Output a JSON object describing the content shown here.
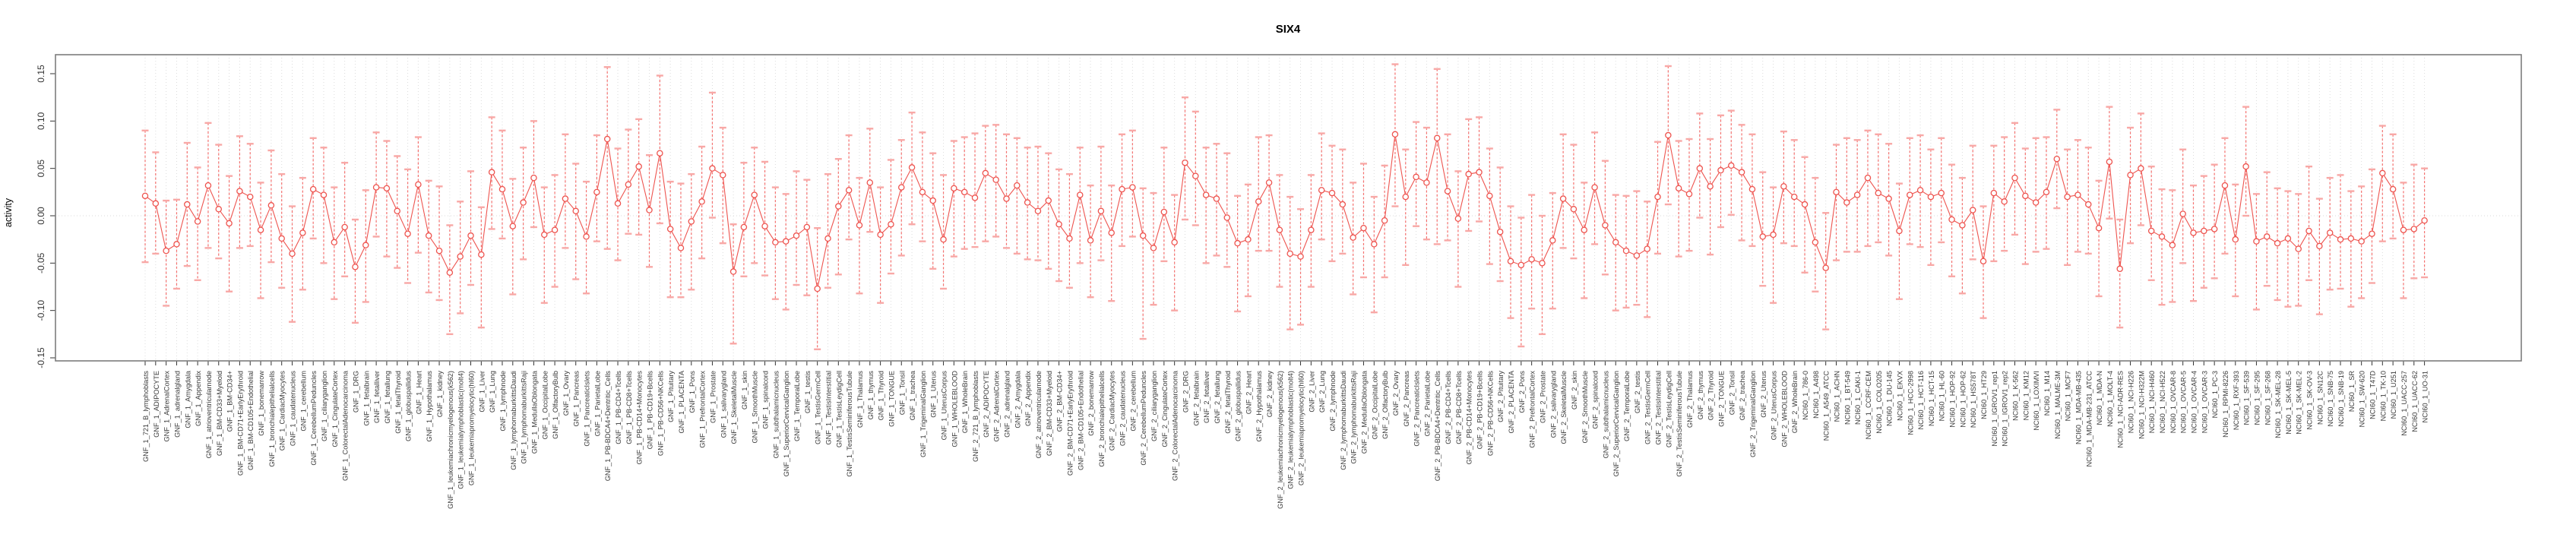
{
  "title": "SIX4",
  "chart_data": {
    "type": "scatter",
    "title": "SIX4",
    "xlabel": "",
    "ylabel": "activity",
    "ylim": [
      -0.153,
      0.171
    ],
    "grid": "vertical dotted gridline at every category; horizontal dotted line at 0",
    "legend_position": "none",
    "marker": "open-circle with dashed error bars (capped) connected by line",
    "n_points": 218,
    "yticks": [
      {
        "label": "0.15",
        "value": 0.15
      },
      {
        "label": "0.10",
        "value": 0.1
      },
      {
        "label": "0.05",
        "value": 0.05
      },
      {
        "label": "0.00",
        "value": 0.0
      },
      {
        "label": "-0.05",
        "value": -0.05
      },
      {
        "label": "-0.10",
        "value": -0.1
      },
      {
        "label": "-0.15",
        "value": -0.15
      }
    ],
    "colors": {
      "series": "#ee544f",
      "error_bar": "#f4716f",
      "error_cap": "#f8a8a6",
      "grid": "#dcdcdc",
      "zero_line": "#d8d8d8",
      "box": "#7d7d7d",
      "tick_text": "#3a3a3a",
      "title_text": "#000000",
      "background": "#ffffff"
    },
    "category_groups": [
      {
        "prefix": "GNF_1_",
        "items": [
          "721_B_lymphoblasts",
          "ADIPOCYTE",
          "AdrenalCortex",
          "adrenalgland",
          "Amygdala",
          "Appendix",
          "atrioventricularnode",
          "BM-CD33+Myeloid",
          "BM-CD34+",
          "BM-CD71+EarlyErythroid",
          "BM-CD105+Endothelial",
          "bonemarrow",
          "bronchialepithelialcells",
          "CardiacMyocytes",
          "caudatenucleus",
          "cerebellum",
          "CerebellumPeduncles",
          "ciliaryganglion",
          "CingulateCortex",
          "ColorectalAdenocarcinoma",
          "DRG",
          "fetalbrain",
          "fetalliver",
          "fetallung",
          "fetalThyroid",
          "globuspallidus",
          "Heart",
          "Hypothalamus",
          "kidney",
          "leukemiachronicmyelogenous(k562)",
          "leukemialymphoblastic(molt4)",
          "leukemiapromyelocytic(hl60)",
          "Liver",
          "Lung",
          "lymphnode",
          "lymphomaburkittsDaudi",
          "lymphomaburkittsRaji",
          "MedullaOblongata",
          "OccipitalLobe",
          "OlfactoryBulb",
          "Ovary",
          "Pancreas",
          "PancreaticIslets",
          "ParietalLobe",
          "PB-BDCA4+Dentritic_Cells",
          "PB-CD4+Tcells",
          "PB-CD8+Tcells",
          "PB-CD14+Monocytes",
          "PB-CD19+Bcells",
          "PB-CD56+NKCells",
          "Pituitary",
          "PLACENTA",
          "Pons",
          "PrefrontalCortex",
          "Prostate",
          "salivarygland",
          "SkeletalMuscle",
          "skin",
          "SmoothMuscle",
          "spinalcord",
          "subthalamicnucleus",
          "SuperiorCervicalGanglion",
          "TemporalLobe",
          "testis",
          "TestisGermCell",
          "TestisInterstitial",
          "TestisLeydigCell",
          "TestisSeminiferousTubule",
          "Thalamus",
          "thymus",
          "Thyroid",
          "TONGUE",
          "Tonsil",
          "trachea",
          "TrigeminalGanglion",
          "Uterus",
          "UterusCorpus",
          "WHOLEBLOOD",
          "WholeBrain"
        ]
      },
      {
        "prefix": "GNF_2_",
        "items": [
          "721_B_lymphoblasts",
          "ADIPOCYTE",
          "AdrenalCortex",
          "adrenalgland",
          "Amygdala",
          "Appendix",
          "atrioventricularnode",
          "BM-CD33+Myeloid",
          "BM-CD34+",
          "BM-CD71+EarlyErythroid",
          "BM-CD105+Endothelial",
          "bonemarrow",
          "bronchialepithelialcells",
          "CardiacMyocytes",
          "caudatenucleus",
          "cerebellum",
          "CerebellumPeduncles",
          "ciliaryganglion",
          "CingulateCortex",
          "ColorectalAdenocarcinoma",
          "DRG",
          "fetalbrain",
          "fetalliver",
          "fetallung",
          "fetalThyroid",
          "globuspallidus",
          "Heart",
          "Hypothalamus",
          "kidney",
          "leukemiachronicmyelogenous(k562)",
          "leukemialymphoblastic(molt4)",
          "leukemiapromyelocytic(hl60)",
          "Liver",
          "Lung",
          "lymphnode",
          "lymphomaburkittsDaudi",
          "lymphomaburkittsRaji",
          "MedullaOblongata",
          "OccipitalLobe",
          "OlfactoryBulb",
          "Ovary",
          "Pancreas",
          "PancreaticIslets",
          "ParietalLobe",
          "PB-BDCA4+Dentritic_Cells",
          "PB-CD4+Tcells",
          "PB-CD8+Tcells",
          "PB-CD14+Monocytes",
          "PB-CD19+Bcells",
          "PB-CD56+NKCells",
          "Pituitary",
          "PLACENTA",
          "Pons",
          "PrefrontalCortex",
          "Prostate",
          "salivarygland",
          "SkeletalMuscle",
          "skin",
          "SmoothMuscle",
          "spinalcord",
          "subthalamicnucleus",
          "SuperiorCervicalGanglion",
          "TemporalLobe",
          "testis",
          "TestisGermCell",
          "TestisInterstitial",
          "TestisLeydigCell",
          "TestisSeminiferousTubule",
          "Thalamus",
          "thymus",
          "Thyroid",
          "TONGUE",
          "Tonsil",
          "trachea",
          "TrigeminalGanglion",
          "Uterus",
          "UterusCorpus",
          "WHOLEBLOOD",
          "WholeBrain"
        ]
      },
      {
        "prefix": "NCI60_1_",
        "items": [
          "786-0",
          "A498",
          "A549_ATCC",
          "ACHN",
          "BT-549",
          "CAKI-1",
          "CCRF-CEM",
          "COLO205",
          "DU-145",
          "EKVX",
          "HCC-2998",
          "HCT-116",
          "HCT-15",
          "HL-60",
          "HOP-92",
          "HOP-62",
          "HS578T",
          "HT29",
          "IGROV1_rep1",
          "IGROV1_rep2",
          "K-562",
          "KM12",
          "LOXIMVI",
          "M14",
          "MALME-3M",
          "MCF7",
          "MDA-MB-435",
          "MDA-MB-231_ATCC",
          "MDA-N",
          "MOLT-4",
          "NCI-ADR-RES",
          "NCI-H226",
          "NCI-H322M",
          "NCI-H460",
          "NCI-H522",
          "OVCAR-8",
          "OVCAR-5",
          "OVCAR-4",
          "OVCAR-3",
          "PC-3",
          "RPMI-8226",
          "RXF-393",
          "SF-539",
          "SF-295",
          "SF-268",
          "SK-MEL-28",
          "SK-MEL-5",
          "SK-MEL-2",
          "SK-OV-3",
          "SN12C",
          "SNB-75",
          "SNB-19",
          "SR",
          "SW-620",
          "T47D",
          "TK-10",
          "U251",
          "UACC-257",
          "UACC-62",
          "UO-31"
        ]
      }
    ],
    "values": [
      0.021,
      0.013,
      -0.037,
      -0.03,
      0.012,
      -0.006,
      0.032,
      0.007,
      -0.008,
      0.026,
      0.02,
      -0.015,
      0.011,
      -0.024,
      -0.04,
      -0.018,
      0.028,
      0.022,
      -0.028,
      -0.012,
      -0.054,
      -0.031,
      0.03,
      0.029,
      0.005,
      -0.019,
      0.033,
      -0.021,
      -0.037,
      -0.06,
      -0.043,
      -0.021,
      -0.041,
      0.046,
      0.028,
      -0.011,
      0.014,
      0.04,
      -0.02,
      -0.015,
      0.018,
      0.005,
      -0.022,
      0.025,
      0.081,
      0.013,
      0.033,
      0.052,
      0.006,
      0.066,
      -0.014,
      -0.034,
      -0.006,
      0.015,
      0.05,
      0.043,
      -0.059,
      -0.012,
      0.022,
      -0.011,
      -0.028,
      -0.027,
      -0.021,
      -0.012,
      -0.077,
      -0.024,
      0.01,
      0.027,
      -0.01,
      0.035,
      -0.02,
      -0.009,
      0.03,
      0.051,
      0.025,
      0.016,
      -0.025,
      0.029,
      0.025,
      0.019,
      0.045,
      0.038,
      0.018,
      0.032,
      0.014,
      0.005,
      0.016,
      -0.009,
      -0.024,
      0.022,
      -0.026,
      0.005,
      -0.018,
      0.028,
      0.03,
      -0.021,
      -0.034,
      0.004,
      -0.028,
      0.056,
      0.042,
      0.022,
      0.018,
      -0.002,
      -0.029,
      -0.025,
      0.015,
      0.035,
      -0.015,
      -0.04,
      -0.043,
      -0.015,
      0.027,
      0.024,
      0.012,
      -0.023,
      -0.013,
      -0.03,
      -0.005,
      0.086,
      0.02,
      0.041,
      0.035,
      0.082,
      0.026,
      -0.003,
      0.044,
      0.046,
      0.021,
      -0.017,
      -0.048,
      -0.052,
      -0.046,
      -0.05,
      -0.026,
      0.018,
      0.007,
      -0.015,
      0.03,
      -0.01,
      -0.028,
      -0.037,
      -0.042,
      -0.035,
      0.02,
      0.085,
      0.029,
      0.023,
      0.05,
      0.031,
      0.048,
      0.053,
      0.046,
      0.028,
      -0.022,
      -0.02,
      0.031,
      0.02,
      0.012,
      -0.028,
      -0.055,
      0.025,
      0.014,
      0.022,
      0.04,
      0.024,
      0.018,
      -0.016,
      0.022,
      0.027,
      0.02,
      0.024,
      -0.004,
      -0.01,
      0.006,
      -0.048,
      0.024,
      0.015,
      0.04,
      0.021,
      0.014,
      0.025,
      0.06,
      0.02,
      0.022,
      0.012,
      -0.013,
      0.057,
      -0.056,
      0.043,
      0.05,
      -0.016,
      -0.022,
      -0.031,
      0.002,
      -0.018,
      -0.016,
      -0.014,
      0.032,
      -0.025,
      0.052,
      -0.027,
      -0.022,
      -0.029,
      -0.024,
      -0.035,
      -0.016,
      -0.032,
      -0.018,
      -0.025,
      -0.024,
      -0.027,
      -0.019,
      0.045,
      0.028,
      -0.015,
      -0.014,
      -0.005
    ],
    "ci_low": [
      -0.049,
      -0.04,
      -0.095,
      -0.077,
      -0.053,
      -0.068,
      -0.034,
      -0.045,
      -0.08,
      -0.034,
      -0.032,
      -0.087,
      -0.049,
      -0.076,
      -0.112,
      -0.078,
      -0.024,
      -0.05,
      -0.088,
      -0.064,
      -0.113,
      -0.091,
      -0.022,
      -0.043,
      -0.055,
      -0.071,
      -0.039,
      -0.081,
      -0.089,
      -0.125,
      -0.103,
      -0.073,
      -0.118,
      -0.014,
      -0.024,
      -0.083,
      -0.046,
      -0.012,
      -0.092,
      -0.075,
      -0.034,
      -0.067,
      -0.082,
      -0.027,
      -0.035,
      -0.047,
      -0.019,
      -0.02,
      -0.054,
      -0.008,
      -0.086,
      -0.086,
      -0.078,
      -0.045,
      -0.002,
      -0.029,
      -0.135,
      -0.064,
      -0.05,
      -0.063,
      -0.088,
      -0.099,
      -0.073,
      -0.084,
      -0.141,
      -0.076,
      -0.062,
      -0.025,
      -0.082,
      -0.017,
      -0.092,
      -0.061,
      -0.042,
      -0.009,
      -0.027,
      -0.056,
      -0.077,
      -0.043,
      -0.035,
      -0.033,
      -0.027,
      -0.022,
      -0.034,
      -0.04,
      -0.046,
      -0.047,
      -0.056,
      -0.069,
      -0.076,
      -0.05,
      -0.086,
      -0.047,
      -0.09,
      -0.032,
      -0.022,
      -0.13,
      -0.094,
      -0.048,
      -0.1,
      -0.004,
      -0.01,
      -0.05,
      -0.042,
      -0.054,
      -0.101,
      -0.085,
      -0.037,
      -0.037,
      -0.075,
      -0.12,
      -0.115,
      -0.075,
      -0.025,
      -0.048,
      -0.04,
      -0.083,
      -0.065,
      -0.102,
      -0.065,
      0.01,
      -0.052,
      -0.011,
      -0.025,
      -0.03,
      -0.026,
      -0.075,
      -0.016,
      -0.006,
      -0.051,
      -0.069,
      -0.108,
      -0.138,
      -0.098,
      -0.125,
      -0.098,
      -0.034,
      -0.045,
      -0.087,
      -0.03,
      -0.062,
      -0.1,
      -0.097,
      -0.094,
      -0.107,
      -0.04,
      0.012,
      -0.043,
      -0.037,
      -0.002,
      -0.041,
      -0.012,
      0.001,
      -0.026,
      -0.032,
      -0.074,
      -0.092,
      -0.029,
      -0.032,
      -0.06,
      -0.08,
      -0.12,
      -0.047,
      -0.038,
      -0.038,
      -0.032,
      -0.028,
      -0.042,
      -0.088,
      -0.03,
      -0.033,
      -0.052,
      -0.028,
      -0.064,
      -0.082,
      -0.046,
      -0.108,
      -0.048,
      -0.037,
      -0.02,
      -0.051,
      -0.038,
      -0.035,
      0.008,
      -0.052,
      -0.038,
      -0.04,
      -0.085,
      -0.003,
      -0.118,
      -0.029,
      -0.01,
      -0.068,
      -0.094,
      -0.091,
      -0.05,
      -0.09,
      -0.076,
      -0.066,
      -0.04,
      -0.085,
      0.0,
      -0.099,
      -0.074,
      -0.089,
      -0.096,
      -0.095,
      -0.068,
      -0.104,
      -0.078,
      -0.077,
      -0.096,
      -0.087,
      -0.071,
      -0.027,
      -0.024,
      -0.087,
      -0.066,
      -0.065
    ],
    "ci_high": [
      0.09,
      0.067,
      0.016,
      0.017,
      0.077,
      0.051,
      0.098,
      0.075,
      0.042,
      0.084,
      0.076,
      0.035,
      0.069,
      0.044,
      0.01,
      0.04,
      0.082,
      0.072,
      0.03,
      0.056,
      -0.004,
      0.027,
      0.088,
      0.079,
      0.063,
      0.049,
      0.083,
      0.037,
      0.031,
      -0.01,
      0.015,
      0.047,
      0.009,
      0.104,
      0.09,
      0.039,
      0.072,
      0.1,
      0.03,
      0.043,
      0.086,
      0.055,
      0.036,
      0.085,
      0.157,
      0.071,
      0.091,
      0.102,
      0.064,
      0.148,
      0.036,
      0.034,
      0.044,
      0.073,
      0.13,
      0.093,
      -0.009,
      0.056,
      0.072,
      0.057,
      0.03,
      0.023,
      0.047,
      0.038,
      -0.013,
      0.044,
      0.06,
      0.085,
      0.04,
      0.092,
      0.03,
      0.059,
      0.08,
      0.109,
      0.088,
      0.066,
      0.043,
      0.079,
      0.083,
      0.087,
      0.095,
      0.096,
      0.086,
      0.082,
      0.072,
      0.073,
      0.066,
      0.049,
      0.044,
      0.072,
      0.032,
      0.073,
      0.032,
      0.086,
      0.09,
      0.029,
      0.024,
      0.072,
      0.022,
      0.125,
      0.11,
      0.072,
      0.076,
      0.066,
      0.021,
      0.033,
      0.083,
      0.085,
      0.043,
      0.02,
      0.007,
      0.043,
      0.087,
      0.074,
      0.07,
      0.035,
      0.055,
      0.02,
      0.053,
      0.16,
      0.07,
      0.099,
      0.093,
      0.155,
      0.086,
      0.047,
      0.102,
      0.104,
      0.071,
      0.051,
      0.01,
      -0.002,
      0.022,
      0.0,
      0.024,
      0.086,
      0.075,
      0.035,
      0.088,
      0.058,
      0.022,
      0.021,
      0.026,
      0.015,
      0.078,
      0.158,
      0.079,
      0.081,
      0.108,
      0.081,
      0.106,
      0.111,
      0.096,
      0.086,
      0.046,
      0.03,
      0.089,
      0.08,
      0.062,
      0.04,
      0.003,
      0.075,
      0.082,
      0.08,
      0.09,
      0.086,
      0.076,
      0.034,
      0.082,
      0.085,
      0.07,
      0.082,
      0.054,
      0.04,
      0.074,
      0.01,
      0.074,
      0.083,
      0.098,
      0.071,
      0.082,
      0.083,
      0.112,
      0.07,
      0.08,
      0.072,
      0.037,
      0.115,
      -0.004,
      0.093,
      0.108,
      0.052,
      0.028,
      0.027,
      0.07,
      0.032,
      0.042,
      0.054,
      0.082,
      0.033,
      0.115,
      0.023,
      0.046,
      0.029,
      0.026,
      0.023,
      0.052,
      0.018,
      0.04,
      0.043,
      0.026,
      0.031,
      0.049,
      0.095,
      0.086,
      0.035,
      0.054,
      0.05
    ]
  }
}
